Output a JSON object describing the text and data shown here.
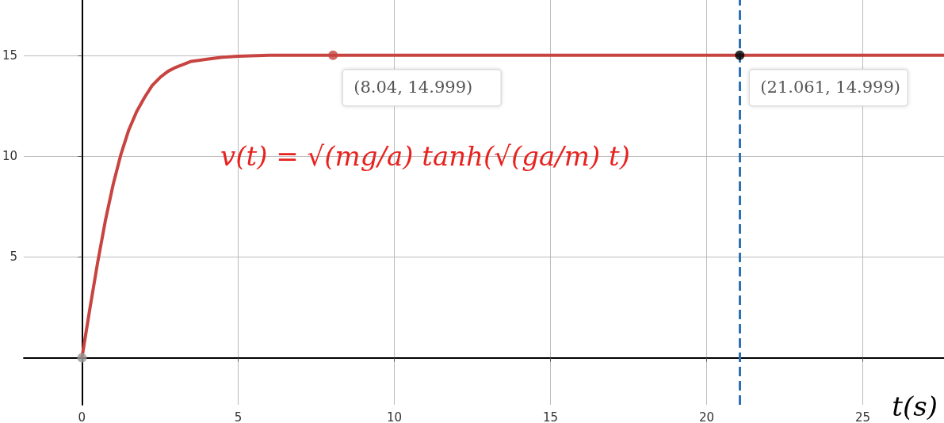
{
  "chart_data": {
    "type": "line",
    "xlabel": "t(s)",
    "xlim": [
      -1.86,
      27.6
    ],
    "ylim": [
      -2.33,
      17.74
    ],
    "xticks": [
      0,
      5,
      10,
      15,
      20,
      25
    ],
    "yticks": [
      5,
      10,
      15
    ],
    "grid": true,
    "series": [
      {
        "color": "#c74440",
        "x": [
          0,
          0.25,
          0.5,
          0.75,
          1,
          1.25,
          1.5,
          1.75,
          2,
          2.25,
          2.5,
          2.75,
          3,
          3.5,
          4,
          4.5,
          5,
          6,
          8.04,
          21.061,
          27.6
        ],
        "values": [
          0,
          2.4,
          4.7,
          6.8,
          8.6,
          10.1,
          11.3,
          12.2,
          12.9,
          13.5,
          13.9,
          14.2,
          14.4,
          14.7,
          14.8,
          14.9,
          14.95,
          15,
          14.999,
          14.999,
          15
        ]
      },
      {
        "type": "scatter",
        "colors": [
          "#999999",
          "#c74440",
          "#000000"
        ],
        "x": [
          0,
          8.04,
          21.061
        ],
        "values": [
          0,
          14.999,
          14.999
        ]
      }
    ],
    "ref_lines": [
      {
        "axis": "x",
        "value": 21.061,
        "color": "#2d70b3",
        "line_style": "dashed"
      }
    ],
    "annotations": [
      {
        "text": "(8.04, 14.999)",
        "x": 8.04,
        "y": 14.999
      },
      {
        "text": "(21.061, 14.999)",
        "x": 21.061,
        "y": 14.999
      },
      "v(t) = √(mg/a) tanh(√(ga/m) t)"
    ]
  }
}
